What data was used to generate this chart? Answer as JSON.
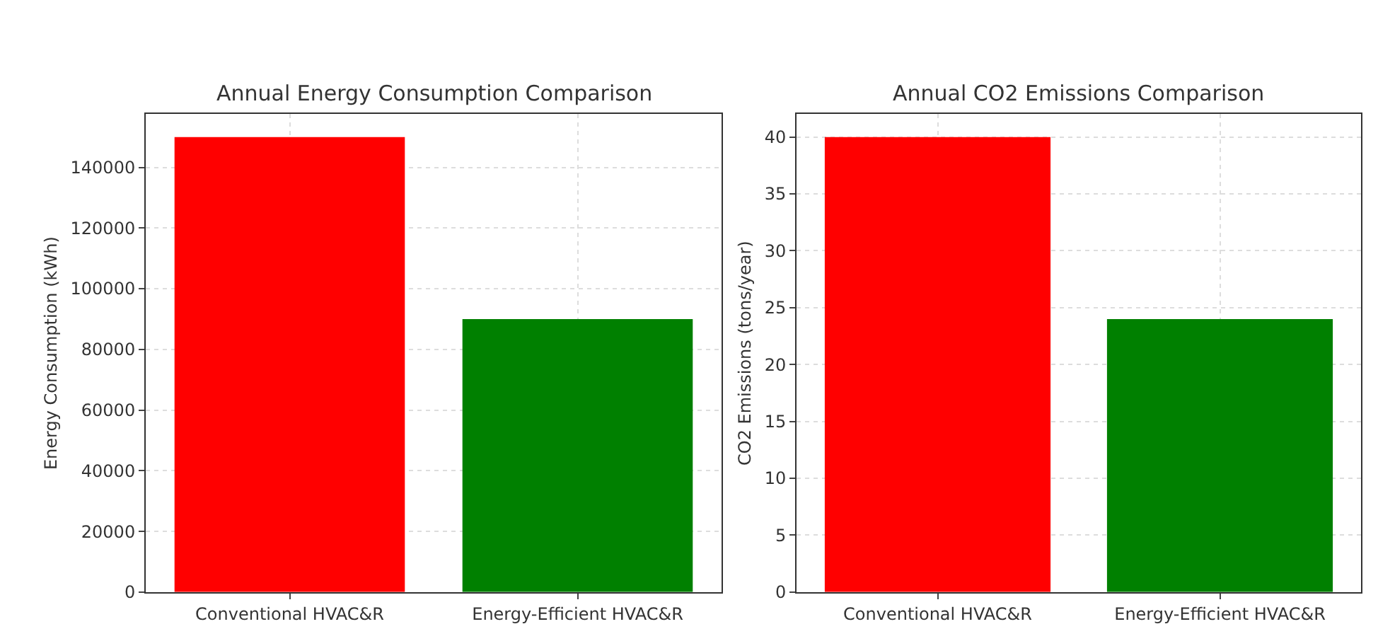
{
  "chart_data": [
    {
      "type": "bar",
      "title": "Annual Energy Consumption Comparison",
      "ylabel": "Energy Consumption (kWh)",
      "categories": [
        "Conventional HVAC&R",
        "Energy-Efficient HVAC&R"
      ],
      "values": [
        150000,
        90000
      ],
      "colors": [
        "#ff0000",
        "#008000"
      ],
      "ylim": [
        0,
        157500
      ],
      "yticks": [
        0,
        20000,
        40000,
        60000,
        80000,
        100000,
        120000,
        140000
      ],
      "grid": true
    },
    {
      "type": "bar",
      "title": "Annual CO2 Emissions Comparison",
      "ylabel": "CO2 Emissions (tons/year)",
      "categories": [
        "Conventional HVAC&R",
        "Energy-Efficient HVAC&R"
      ],
      "values": [
        40,
        24
      ],
      "colors": [
        "#ff0000",
        "#008000"
      ],
      "ylim": [
        0,
        42
      ],
      "yticks": [
        0,
        5,
        10,
        15,
        20,
        25,
        30,
        35,
        40
      ],
      "grid": true
    }
  ]
}
